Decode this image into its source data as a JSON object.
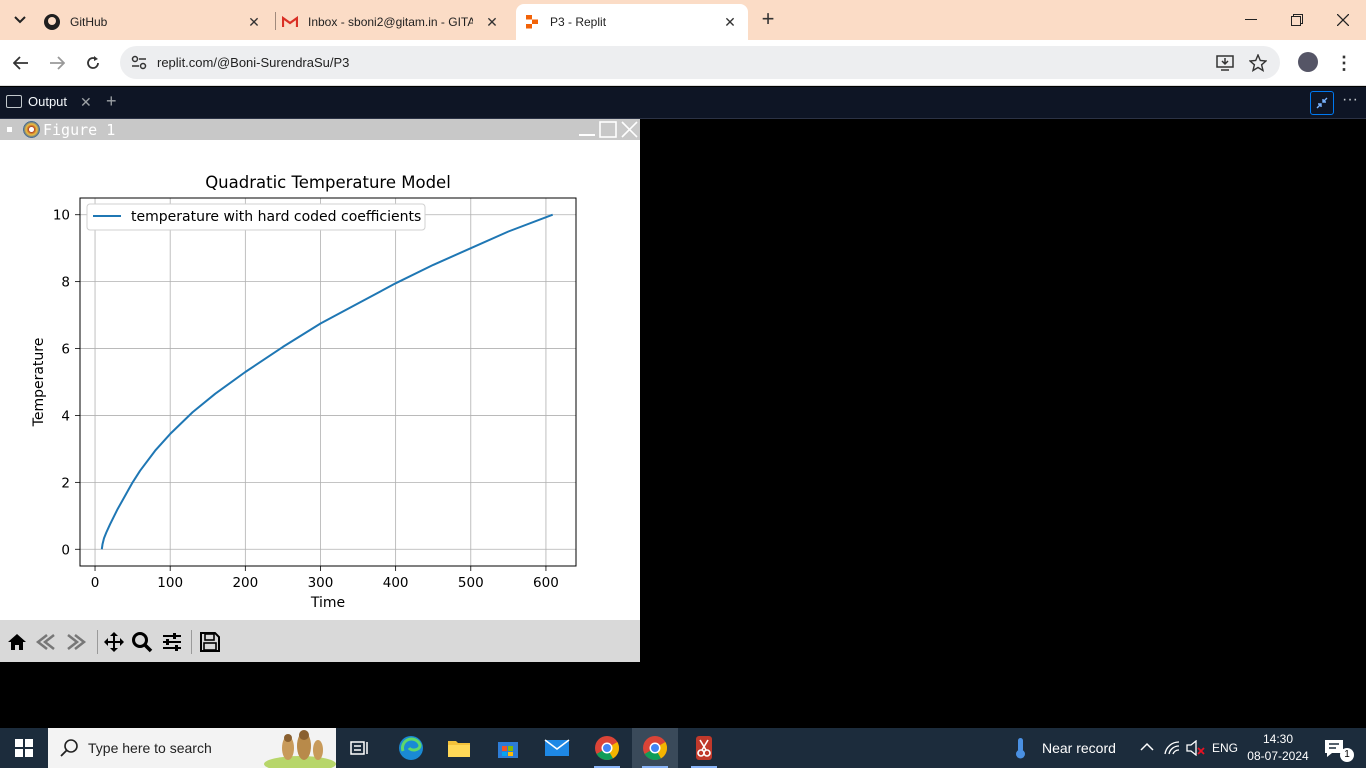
{
  "browser": {
    "tabs": [
      {
        "title": "GitHub",
        "favicon": "github-icon"
      },
      {
        "title": "Inbox - sboni2@gitam.in - GITA",
        "favicon": "gmail-icon"
      },
      {
        "title": "P3 - Replit",
        "favicon": "replit-icon",
        "active": true
      }
    ],
    "url": "replit.com/@Boni-SurendraSu/P3"
  },
  "replit": {
    "output_tab_label": "Output"
  },
  "figure_window": {
    "title": "Figure 1"
  },
  "chart_data": {
    "type": "line",
    "title": "Quadratic Temperature Model",
    "xlabel": "Time",
    "ylabel": "Temperature",
    "xlim": [
      -20,
      640
    ],
    "ylim": [
      -0.5,
      10.5
    ],
    "xticks": [
      0,
      100,
      200,
      300,
      400,
      500,
      600
    ],
    "yticks": [
      0,
      2,
      4,
      6,
      8,
      10
    ],
    "grid": true,
    "legend_position": "upper left",
    "series": [
      {
        "name": "temperature with hard coded coefficients",
        "color": "#1f77b4",
        "x": [
          9,
          10,
          12,
          15,
          20,
          30,
          40,
          50,
          60,
          80,
          100,
          130,
          160,
          200,
          250,
          300,
          350,
          400,
          450,
          500,
          550,
          609
        ],
        "y": [
          0,
          0.15,
          0.33,
          0.5,
          0.75,
          1.2,
          1.6,
          2.0,
          2.35,
          2.95,
          3.45,
          4.1,
          4.65,
          5.3,
          6.05,
          6.75,
          7.35,
          7.95,
          8.5,
          9.0,
          9.5,
          10.0
        ]
      }
    ]
  },
  "taskbar": {
    "search_placeholder": "Type here to search",
    "weather_text": "Near record",
    "language": "ENG",
    "time": "14:30",
    "date": "08-07-2024",
    "notification_count": "1"
  }
}
